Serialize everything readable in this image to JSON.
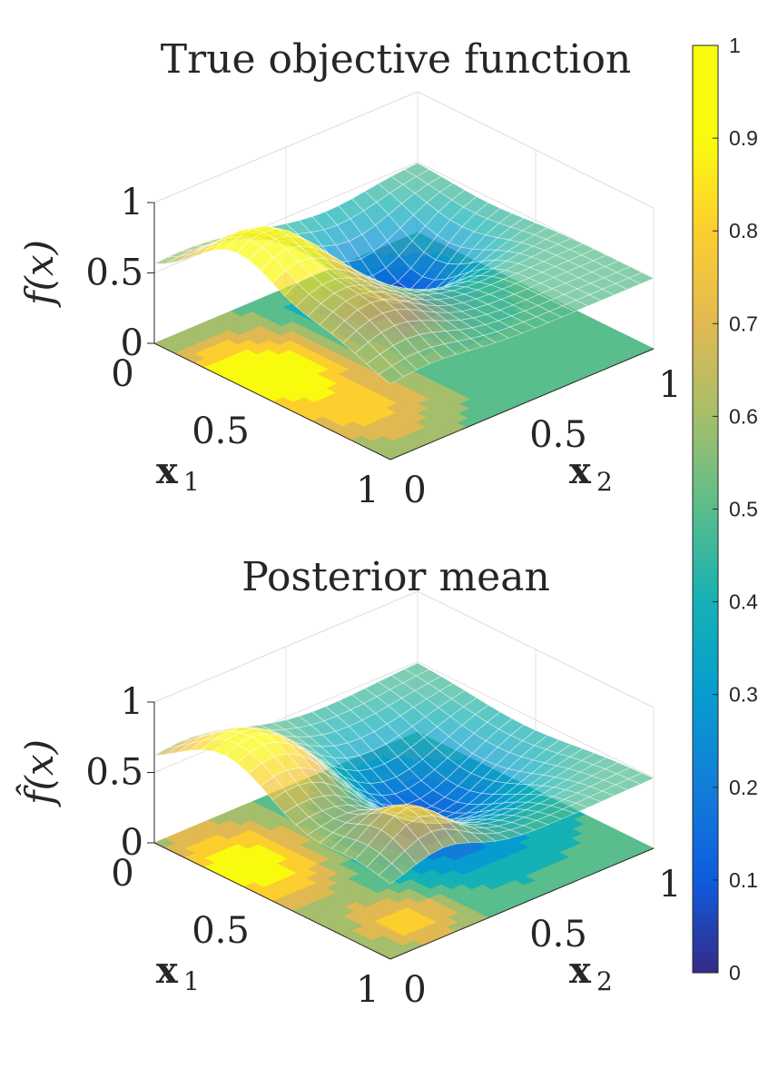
{
  "chart_data": [
    {
      "type": "surface",
      "title": "True objective function",
      "zlabel_main": "f",
      "zlabel_paren": "(x)",
      "xlabel_main": "x",
      "xlabel_sub": "1",
      "ylabel_main": "x",
      "ylabel_sub": "2",
      "zlim": [
        0,
        1
      ],
      "x_ticks": [
        "0",
        "0.5",
        "1"
      ],
      "y_ticks": [
        "0",
        "0.5",
        "1"
      ],
      "z_ticks": [
        "0",
        "0.5",
        "1"
      ],
      "bumps": [
        {
          "x1": 0.35,
          "x2": 0.1,
          "height": 0.5,
          "width": 0.18
        },
        {
          "x1": 0.3,
          "x2": 0.65,
          "height": -0.45,
          "width": 0.16
        },
        {
          "x1": 0.75,
          "x2": 0.15,
          "height": 0.25,
          "width": 0.15
        }
      ],
      "base_level": 0.5
    },
    {
      "type": "surface",
      "title": "Posterior mean",
      "zlabel_main": "f̂",
      "zlabel_paren": "(x)",
      "xlabel_main": "x",
      "xlabel_sub": "1",
      "ylabel_main": "x",
      "ylabel_sub": "2",
      "zlim": [
        0,
        1
      ],
      "x_ticks": [
        "0",
        "0.5",
        "1"
      ],
      "y_ticks": [
        "0",
        "0.5",
        "1"
      ],
      "z_ticks": [
        "0",
        "0.5",
        "1"
      ],
      "bumps": [
        {
          "x1": 0.3,
          "x2": 0.12,
          "height": 0.45,
          "width": 0.2
        },
        {
          "x1": 0.45,
          "x2": 0.6,
          "height": -0.4,
          "width": 0.22
        },
        {
          "x1": 0.85,
          "x2": 0.2,
          "height": 0.3,
          "width": 0.12
        }
      ],
      "base_level": 0.5
    }
  ],
  "colorbar": {
    "colormap": "parula",
    "range": [
      0,
      1
    ],
    "ticks": [
      "0",
      "0.1",
      "0.2",
      "0.3",
      "0.4",
      "0.5",
      "0.6",
      "0.7",
      "0.8",
      "0.9",
      "1"
    ]
  }
}
